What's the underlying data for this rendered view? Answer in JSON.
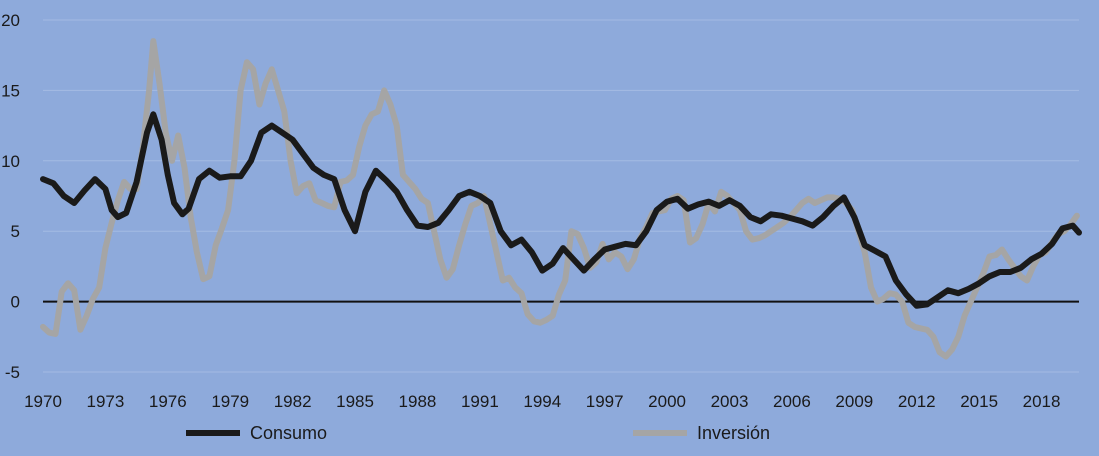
{
  "chart_data": {
    "type": "line",
    "title": "",
    "xlabel": "",
    "ylabel": "",
    "xlim": [
      1970,
      2019.8
    ],
    "ylim": [
      -5,
      20
    ],
    "y_ticks": [
      20,
      15,
      10,
      5,
      0,
      -5
    ],
    "x_ticks": [
      "1970",
      "1973",
      "1976",
      "1979",
      "1982",
      "1985",
      "1988",
      "1991",
      "1994",
      "1997",
      "2000",
      "2003",
      "2006",
      "2009",
      "2012",
      "2015",
      "2018"
    ],
    "grid": true,
    "legend_position": "bottom",
    "series": [
      {
        "name": "Consumo",
        "color": "#1a1a1a",
        "points": [
          [
            1970.0,
            8.7
          ],
          [
            1970.5,
            8.4
          ],
          [
            1971.0,
            7.5
          ],
          [
            1971.5,
            7.0
          ],
          [
            1972.0,
            7.9
          ],
          [
            1972.5,
            8.7
          ],
          [
            1973.0,
            8.0
          ],
          [
            1973.3,
            6.5
          ],
          [
            1973.6,
            6.0
          ],
          [
            1974.0,
            6.3
          ],
          [
            1974.5,
            8.5
          ],
          [
            1975.0,
            12.0
          ],
          [
            1975.3,
            13.3
          ],
          [
            1975.7,
            11.5
          ],
          [
            1976.0,
            9.0
          ],
          [
            1976.3,
            7.0
          ],
          [
            1976.7,
            6.2
          ],
          [
            1977.0,
            6.6
          ],
          [
            1977.5,
            8.7
          ],
          [
            1978.0,
            9.3
          ],
          [
            1978.5,
            8.8
          ],
          [
            1979.0,
            8.9
          ],
          [
            1979.5,
            8.9
          ],
          [
            1980.0,
            10.0
          ],
          [
            1980.5,
            12.0
          ],
          [
            1981.0,
            12.5
          ],
          [
            1981.5,
            12.0
          ],
          [
            1982.0,
            11.5
          ],
          [
            1982.5,
            10.5
          ],
          [
            1983.0,
            9.5
          ],
          [
            1983.5,
            9.0
          ],
          [
            1984.0,
            8.7
          ],
          [
            1984.5,
            6.5
          ],
          [
            1985.0,
            5.0
          ],
          [
            1985.5,
            7.8
          ],
          [
            1986.0,
            9.3
          ],
          [
            1986.5,
            8.6
          ],
          [
            1987.0,
            7.8
          ],
          [
            1987.5,
            6.5
          ],
          [
            1988.0,
            5.4
          ],
          [
            1988.5,
            5.3
          ],
          [
            1989.0,
            5.6
          ],
          [
            1989.5,
            6.5
          ],
          [
            1990.0,
            7.5
          ],
          [
            1990.5,
            7.8
          ],
          [
            1991.0,
            7.5
          ],
          [
            1991.5,
            7.0
          ],
          [
            1992.0,
            5.0
          ],
          [
            1992.5,
            4.0
          ],
          [
            1993.0,
            4.4
          ],
          [
            1993.5,
            3.5
          ],
          [
            1994.0,
            2.2
          ],
          [
            1994.5,
            2.7
          ],
          [
            1995.0,
            3.8
          ],
          [
            1995.5,
            3.0
          ],
          [
            1996.0,
            2.2
          ],
          [
            1996.5,
            3.0
          ],
          [
            1997.0,
            3.7
          ],
          [
            1997.5,
            3.9
          ],
          [
            1998.0,
            4.1
          ],
          [
            1998.5,
            4.0
          ],
          [
            1999.0,
            5.0
          ],
          [
            1999.5,
            6.5
          ],
          [
            2000.0,
            7.1
          ],
          [
            2000.5,
            7.3
          ],
          [
            2001.0,
            6.6
          ],
          [
            2001.5,
            6.9
          ],
          [
            2002.0,
            7.1
          ],
          [
            2002.5,
            6.8
          ],
          [
            2003.0,
            7.2
          ],
          [
            2003.5,
            6.8
          ],
          [
            2004.0,
            6.0
          ],
          [
            2004.5,
            5.7
          ],
          [
            2005.0,
            6.2
          ],
          [
            2005.5,
            6.1
          ],
          [
            2006.0,
            5.9
          ],
          [
            2006.5,
            5.7
          ],
          [
            2007.0,
            5.4
          ],
          [
            2007.5,
            6.0
          ],
          [
            2008.0,
            6.8
          ],
          [
            2008.5,
            7.4
          ],
          [
            2009.0,
            6.0
          ],
          [
            2009.5,
            4.0
          ],
          [
            2010.0,
            3.6
          ],
          [
            2010.5,
            3.2
          ],
          [
            2011.0,
            1.5
          ],
          [
            2011.5,
            0.5
          ],
          [
            2012.0,
            -0.3
          ],
          [
            2012.5,
            -0.2
          ],
          [
            2013.0,
            0.3
          ],
          [
            2013.5,
            0.8
          ],
          [
            2014.0,
            0.6
          ],
          [
            2014.5,
            0.9
          ],
          [
            2015.0,
            1.3
          ],
          [
            2015.5,
            1.8
          ],
          [
            2016.0,
            2.1
          ],
          [
            2016.5,
            2.1
          ],
          [
            2017.0,
            2.4
          ],
          [
            2017.5,
            3.0
          ],
          [
            2018.0,
            3.4
          ],
          [
            2018.5,
            4.1
          ],
          [
            2019.0,
            5.2
          ],
          [
            2019.5,
            5.4
          ],
          [
            2019.8,
            4.9
          ]
        ]
      },
      {
        "name": "Inversión",
        "color": "#a5a5a5",
        "points": [
          [
            1970.0,
            -1.8
          ],
          [
            1970.3,
            -2.2
          ],
          [
            1970.6,
            -2.3
          ],
          [
            1970.9,
            0.7
          ],
          [
            1971.2,
            1.3
          ],
          [
            1971.5,
            0.8
          ],
          [
            1971.8,
            -2.0
          ],
          [
            1972.1,
            -1.0
          ],
          [
            1972.4,
            0.2
          ],
          [
            1972.7,
            1.0
          ],
          [
            1973.0,
            3.8
          ],
          [
            1973.3,
            5.6
          ],
          [
            1973.6,
            7.2
          ],
          [
            1973.9,
            8.5
          ],
          [
            1974.2,
            8.0
          ],
          [
            1974.5,
            8.0
          ],
          [
            1974.8,
            11.0
          ],
          [
            1975.1,
            15.0
          ],
          [
            1975.3,
            18.5
          ],
          [
            1975.6,
            15.5
          ],
          [
            1975.9,
            12.0
          ],
          [
            1976.2,
            10.0
          ],
          [
            1976.5,
            11.8
          ],
          [
            1976.8,
            9.5
          ],
          [
            1977.1,
            6.0
          ],
          [
            1977.4,
            3.5
          ],
          [
            1977.7,
            1.6
          ],
          [
            1978.0,
            1.8
          ],
          [
            1978.3,
            4.0
          ],
          [
            1978.6,
            5.2
          ],
          [
            1978.9,
            6.5
          ],
          [
            1979.2,
            10.0
          ],
          [
            1979.5,
            15.0
          ],
          [
            1979.8,
            17.0
          ],
          [
            1980.1,
            16.5
          ],
          [
            1980.4,
            14.0
          ],
          [
            1980.7,
            15.5
          ],
          [
            1981.0,
            16.5
          ],
          [
            1981.3,
            15.0
          ],
          [
            1981.6,
            13.5
          ],
          [
            1981.9,
            10.0
          ],
          [
            1982.2,
            7.7
          ],
          [
            1982.5,
            8.2
          ],
          [
            1982.8,
            8.4
          ],
          [
            1983.1,
            7.2
          ],
          [
            1983.4,
            7.0
          ],
          [
            1983.7,
            6.8
          ],
          [
            1984.0,
            6.7
          ],
          [
            1984.3,
            8.5
          ],
          [
            1984.6,
            8.6
          ],
          [
            1984.9,
            9.0
          ],
          [
            1985.2,
            11.0
          ],
          [
            1985.5,
            12.5
          ],
          [
            1985.8,
            13.3
          ],
          [
            1986.1,
            13.5
          ],
          [
            1986.4,
            15.0
          ],
          [
            1986.7,
            14.0
          ],
          [
            1987.0,
            12.5
          ],
          [
            1987.3,
            9.0
          ],
          [
            1987.6,
            8.5
          ],
          [
            1987.9,
            8.0
          ],
          [
            1988.2,
            7.3
          ],
          [
            1988.5,
            7.0
          ],
          [
            1988.8,
            5.0
          ],
          [
            1989.1,
            3.0
          ],
          [
            1989.4,
            1.7
          ],
          [
            1989.7,
            2.3
          ],
          [
            1990.0,
            4.0
          ],
          [
            1990.3,
            5.5
          ],
          [
            1990.6,
            6.8
          ],
          [
            1990.9,
            7.0
          ],
          [
            1991.2,
            7.5
          ],
          [
            1991.5,
            5.5
          ],
          [
            1991.8,
            3.5
          ],
          [
            1992.1,
            1.5
          ],
          [
            1992.4,
            1.7
          ],
          [
            1992.7,
            1.0
          ],
          [
            1993.0,
            0.6
          ],
          [
            1993.3,
            -0.9
          ],
          [
            1993.6,
            -1.4
          ],
          [
            1993.9,
            -1.5
          ],
          [
            1994.2,
            -1.3
          ],
          [
            1994.5,
            -1.0
          ],
          [
            1994.8,
            0.5
          ],
          [
            1995.1,
            1.5
          ],
          [
            1995.4,
            5.0
          ],
          [
            1995.7,
            4.8
          ],
          [
            1996.0,
            3.8
          ],
          [
            1996.3,
            2.4
          ],
          [
            1996.6,
            2.8
          ],
          [
            1996.9,
            4.1
          ],
          [
            1997.2,
            3.0
          ],
          [
            1997.5,
            3.5
          ],
          [
            1997.8,
            3.2
          ],
          [
            1998.1,
            2.3
          ],
          [
            1998.4,
            3.0
          ],
          [
            1998.7,
            4.5
          ],
          [
            1999.0,
            5.3
          ],
          [
            1999.3,
            6.3
          ],
          [
            1999.6,
            6.4
          ],
          [
            1999.9,
            6.5
          ],
          [
            2000.2,
            7.3
          ],
          [
            2000.5,
            7.5
          ],
          [
            2000.8,
            7.2
          ],
          [
            2001.1,
            4.2
          ],
          [
            2001.4,
            4.5
          ],
          [
            2001.7,
            5.5
          ],
          [
            2002.0,
            7.0
          ],
          [
            2002.3,
            6.4
          ],
          [
            2002.6,
            7.8
          ],
          [
            2002.9,
            7.5
          ],
          [
            2003.2,
            7.0
          ],
          [
            2003.5,
            6.5
          ],
          [
            2003.8,
            5.0
          ],
          [
            2004.1,
            4.4
          ],
          [
            2004.4,
            4.5
          ],
          [
            2004.7,
            4.7
          ],
          [
            2005.0,
            5.0
          ],
          [
            2005.3,
            5.3
          ],
          [
            2005.6,
            5.6
          ],
          [
            2005.9,
            6.0
          ],
          [
            2006.2,
            6.5
          ],
          [
            2006.5,
            7.0
          ],
          [
            2006.8,
            7.3
          ],
          [
            2007.1,
            7.0
          ],
          [
            2007.4,
            7.2
          ],
          [
            2007.7,
            7.4
          ],
          [
            2008.0,
            7.4
          ],
          [
            2008.3,
            7.3
          ],
          [
            2008.6,
            7.0
          ],
          [
            2008.9,
            6.5
          ],
          [
            2009.2,
            5.0
          ],
          [
            2009.5,
            3.5
          ],
          [
            2009.8,
            1.0
          ],
          [
            2010.1,
            0.0
          ],
          [
            2010.4,
            0.2
          ],
          [
            2010.7,
            0.6
          ],
          [
            2011.0,
            0.5
          ],
          [
            2011.3,
            0.0
          ],
          [
            2011.6,
            -1.5
          ],
          [
            2011.9,
            -1.8
          ],
          [
            2012.2,
            -1.9
          ],
          [
            2012.5,
            -2.0
          ],
          [
            2012.8,
            -2.5
          ],
          [
            2013.1,
            -3.6
          ],
          [
            2013.4,
            -3.9
          ],
          [
            2013.7,
            -3.4
          ],
          [
            2014.0,
            -2.5
          ],
          [
            2014.3,
            -1.0
          ],
          [
            2014.6,
            0.0
          ],
          [
            2014.9,
            1.0
          ],
          [
            2015.2,
            2.0
          ],
          [
            2015.5,
            3.2
          ],
          [
            2015.8,
            3.3
          ],
          [
            2016.1,
            3.7
          ],
          [
            2016.4,
            3.0
          ],
          [
            2016.7,
            2.4
          ],
          [
            2017.0,
            1.8
          ],
          [
            2017.3,
            1.5
          ],
          [
            2017.6,
            2.5
          ],
          [
            2017.9,
            3.3
          ],
          [
            2018.2,
            3.5
          ],
          [
            2018.5,
            4.2
          ],
          [
            2018.8,
            4.8
          ],
          [
            2019.1,
            5.0
          ],
          [
            2019.4,
            5.5
          ],
          [
            2019.7,
            6.1
          ]
        ]
      }
    ]
  }
}
